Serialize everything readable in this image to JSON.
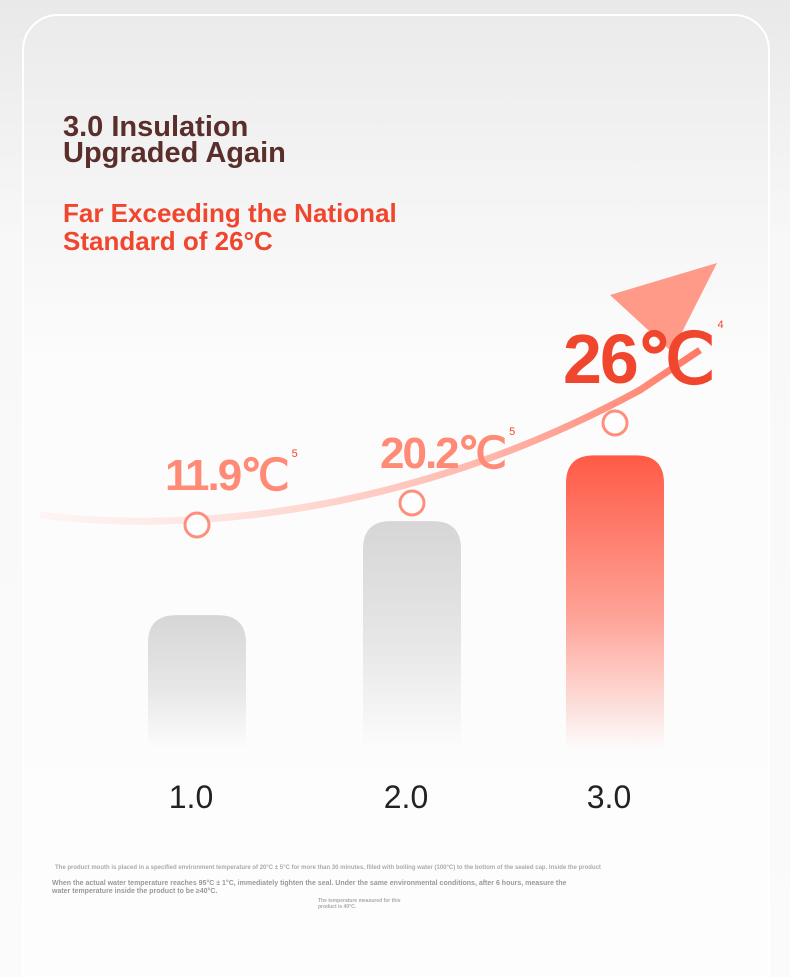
{
  "chart_data": {
    "type": "bar",
    "title": "3.0 Insulation Upgraded Again",
    "subtitle": "Far Exceeding the National Standard of 26°C",
    "categories": [
      "1.0",
      "2.0",
      "3.0"
    ],
    "values": [
      11.9,
      20.2,
      26
    ],
    "value_labels": [
      "11.9℃",
      "20.2℃",
      "26℃"
    ],
    "notes": [
      "5",
      "5",
      "4"
    ],
    "colors": [
      "#d6d6d6",
      "#d6d6d6",
      "#ff5a45"
    ],
    "ylim": [
      0,
      30
    ],
    "footnotes": [
      "The product mouth is placed in a specified environment temperature of 20°C ± 5°C for more than 30 minutes, filled with boiling water (100°C) to the bottom of the sealed cap. Inside the product",
      "When the actual water temperature reaches 95°C ± 1°C, immediately tighten the seal. Under the same environmental conditions, after 6 hours, measure the water temperature inside the product to be ≥40°C.",
      "The temperature measured for this product is 40°C."
    ]
  }
}
